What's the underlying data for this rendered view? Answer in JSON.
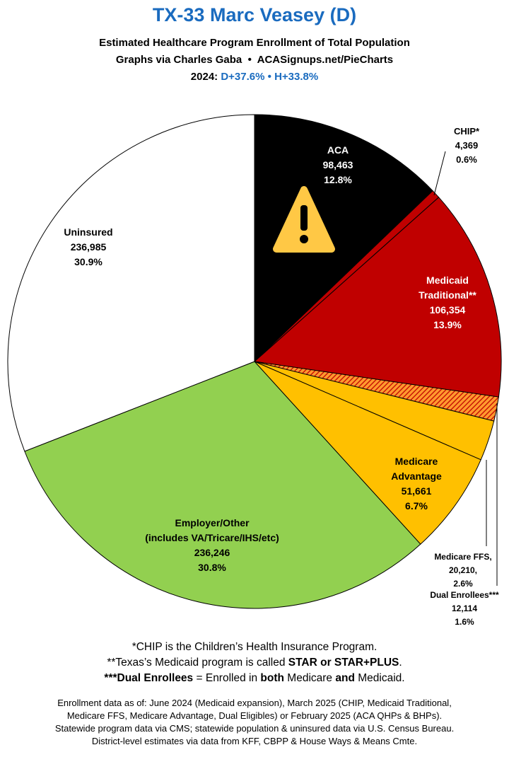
{
  "chart_data": {
    "type": "pie",
    "title": "TX-33 Marc Veasey (D)",
    "subtitle": "Estimated Healthcare Program Enrollment of Total Population",
    "credit": "Graphs via Charles Gaba  •  ACASignups.net/PieCharts",
    "lean_year": "2024:",
    "lean_d": "D+37.6%",
    "lean_separator": "•",
    "lean_h": "H+33.8%",
    "categories": [
      "ACA",
      "CHIP*",
      "Medicaid Traditional**",
      "Dual Enrollees***",
      "Medicare FFS,",
      "Medicare Advantage",
      "Employer/Other",
      "Uninsured"
    ],
    "notes": [
      null,
      null,
      null,
      null,
      null,
      null,
      "(includes VA/Tricare/IHS/etc)",
      null
    ],
    "values": [
      98463,
      4369,
      106354,
      12114,
      20210,
      51661,
      236246,
      236985
    ],
    "value_labels": [
      "98,463",
      "4,369",
      "106,354",
      "12,114",
      "20,210,",
      "51,661",
      "236,246",
      "236,985"
    ],
    "shares": [
      12.8,
      0.6,
      13.9,
      1.6,
      2.6,
      6.7,
      30.8,
      30.9
    ],
    "share_labels": [
      "12.8%",
      "0.6%",
      "13.9%",
      "1.6%",
      "2.6%",
      "6.7%",
      "30.8%",
      "30.9%"
    ],
    "colors": [
      "#000000",
      "#c00000",
      "#c00000",
      "hatch",
      "#ffc000",
      "#ffc000",
      "#92d050",
      "#ffffff"
    ],
    "footnotes": [
      [
        {
          "text": "*CHIP is the Children’s Health Insurance Program.",
          "bold": false
        }
      ],
      [
        {
          "text": "**Texas’s Medicaid program is called ",
          "bold": false
        },
        {
          "text": "STAR or STAR+PLUS",
          "bold": true
        },
        {
          "text": ".",
          "bold": false
        }
      ],
      [
        {
          "text": "***Dual Enrollees",
          "bold": true
        },
        {
          "text": " = Enrolled in ",
          "bold": false
        },
        {
          "text": "both",
          "bold": true
        },
        {
          "text": " Medicare ",
          "bold": false
        },
        {
          "text": "and",
          "bold": true
        },
        {
          "text": " Medicaid.",
          "bold": false
        }
      ]
    ],
    "sources": [
      "Enrollment data as of: June 2024 (Medicaid expansion), March 2025 (CHIP, Medicaid Traditional,",
      "Medicare FFS, Medicare Advantage, Dual Eligibles) or February 2025 (ACA QHPs & BHPs).",
      "Statewide program data via CMS; statewide population & uninsured data via U.S. Census Bureau.",
      "District-level estimates via data from KFF, CBPP & House Ways & Means Cmte."
    ]
  }
}
